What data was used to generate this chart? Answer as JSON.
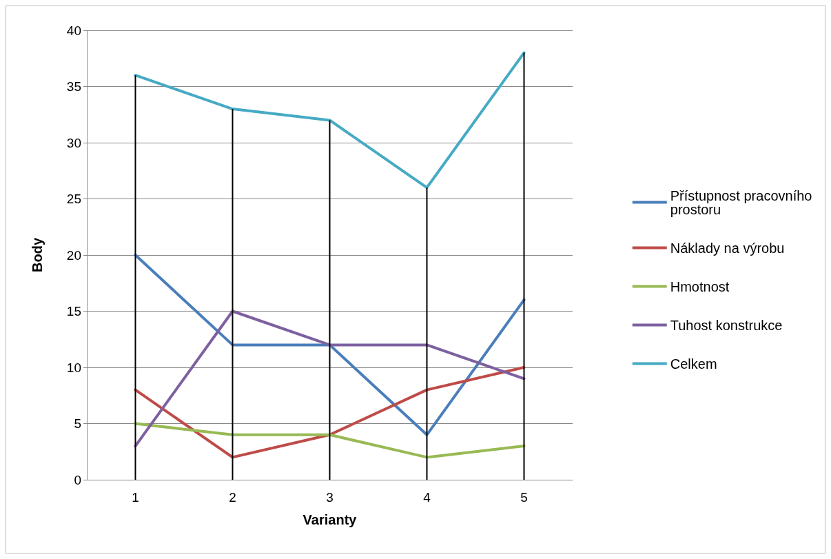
{
  "chart_data": {
    "type": "line",
    "xlabel": "Varianty",
    "ylabel": "Body",
    "categories": [
      "1",
      "2",
      "3",
      "4",
      "5"
    ],
    "series": [
      {
        "name": "Přístupnost pracovního prostoru",
        "color": "#4a7ebb",
        "values": [
          20,
          12,
          12,
          4,
          16
        ]
      },
      {
        "name": "Náklady na výrobu",
        "color": "#be4b48",
        "values": [
          8,
          2,
          4,
          8,
          10
        ]
      },
      {
        "name": "Hmotnost",
        "color": "#98b954",
        "values": [
          5,
          4,
          4,
          2,
          3
        ]
      },
      {
        "name": "Tuhost konstrukce",
        "color": "#7d60a0",
        "values": [
          3,
          15,
          12,
          12,
          9
        ]
      },
      {
        "name": "Celkem",
        "color": "#46aac5",
        "values": [
          36,
          33,
          32,
          26,
          38
        ]
      },
      {
        "type": "bar",
        "color": "#000000",
        "values": [
          36,
          33,
          32,
          26,
          38
        ]
      }
    ],
    "ylim": [
      0,
      40
    ],
    "yticks": [
      0,
      5,
      10,
      15,
      20,
      25,
      30,
      35,
      40
    ],
    "grid": "y",
    "legend": "right",
    "marker": "none",
    "line_style": "solid"
  }
}
